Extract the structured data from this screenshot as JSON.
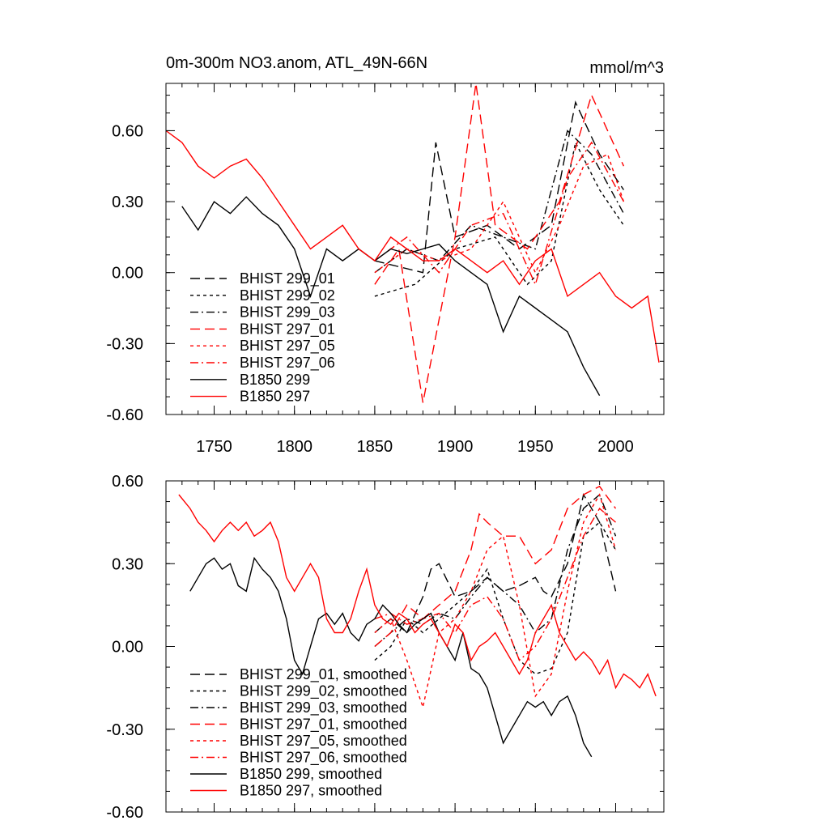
{
  "chart_data": [
    {
      "type": "line",
      "title": "0m-300m NO3.anom, ATL_49N-66N",
      "units": "mmol/m^3",
      "xlim": [
        1720,
        2030
      ],
      "ylim": [
        -0.6,
        0.8
      ],
      "yticks": [
        -0.6,
        -0.3,
        0.0,
        0.3,
        0.6
      ],
      "ytick_labels": [
        "-0.60",
        "-0.30",
        "0.00",
        "0.30",
        "0.60"
      ],
      "xticks": [
        1750,
        1800,
        1850,
        1900,
        1950,
        2000
      ],
      "xtick_labels": [
        "1750",
        "1800",
        "1850",
        "1900",
        "1950",
        "2000"
      ],
      "legend_position": "lower-left",
      "series": [
        {
          "name": "BHIST 299_01",
          "color": "#000000",
          "dash": "long-dash",
          "x": [
            1850,
            1880,
            1888,
            1900,
            1920,
            1940,
            1960,
            1975,
            1990,
            2005
          ],
          "values": [
            0.05,
            0.0,
            0.55,
            0.15,
            0.2,
            0.1,
            0.2,
            0.72,
            0.5,
            0.35
          ]
        },
        {
          "name": "BHIST 299_02",
          "color": "#000000",
          "dash": "short-dash",
          "x": [
            1850,
            1875,
            1900,
            1925,
            1945,
            1960,
            1975,
            1990,
            2005
          ],
          "values": [
            -0.1,
            -0.05,
            0.1,
            0.15,
            -0.05,
            0.05,
            0.55,
            0.35,
            0.2
          ]
        },
        {
          "name": "BHIST 299_03",
          "color": "#000000",
          "dash": "dash-dot",
          "x": [
            1850,
            1870,
            1890,
            1910,
            1930,
            1950,
            1970,
            1985,
            2005
          ],
          "values": [
            0.0,
            0.1,
            0.05,
            0.2,
            0.15,
            0.1,
            0.6,
            0.5,
            0.25
          ]
        },
        {
          "name": "BHIST 297_01",
          "color": "#ff0000",
          "dash": "long-dash",
          "x": [
            1850,
            1865,
            1880,
            1900,
            1913,
            1925,
            1945,
            1965,
            1985,
            2005
          ],
          "values": [
            -0.05,
            0.1,
            -0.55,
            0.15,
            0.8,
            0.2,
            0.1,
            0.3,
            0.75,
            0.45
          ]
        },
        {
          "name": "BHIST 297_05",
          "color": "#ff0000",
          "dash": "short-dash",
          "x": [
            1850,
            1870,
            1890,
            1910,
            1930,
            1950,
            1965,
            1980,
            1995,
            2005
          ],
          "values": [
            0.0,
            0.1,
            0.05,
            0.1,
            0.3,
            0.0,
            0.2,
            0.45,
            0.5,
            0.3
          ]
        },
        {
          "name": "BHIST 297_06",
          "color": "#ff0000",
          "dash": "dash-dot",
          "x": [
            1850,
            1870,
            1890,
            1910,
            1930,
            1950,
            1970,
            1985,
            2005
          ],
          "values": [
            0.05,
            0.15,
            0.0,
            0.2,
            0.25,
            -0.05,
            0.4,
            0.55,
            0.3
          ]
        },
        {
          "name": "B1850 299",
          "color": "#000000",
          "dash": "solid",
          "x": [
            1730,
            1740,
            1750,
            1760,
            1770,
            1780,
            1790,
            1800,
            1810,
            1820,
            1830,
            1840,
            1850,
            1860,
            1870,
            1880,
            1890,
            1900,
            1910,
            1920,
            1930,
            1940,
            1950,
            1960,
            1970,
            1980,
            1990
          ],
          "values": [
            0.28,
            0.18,
            0.3,
            0.25,
            0.32,
            0.25,
            0.2,
            0.1,
            -0.1,
            0.1,
            0.05,
            0.1,
            0.05,
            0.1,
            0.08,
            0.1,
            0.12,
            0.05,
            0.0,
            -0.05,
            -0.25,
            -0.1,
            -0.15,
            -0.2,
            -0.25,
            -0.4,
            -0.52
          ]
        },
        {
          "name": "B1850 297",
          "color": "#ff0000",
          "dash": "solid",
          "x": [
            1720,
            1730,
            1740,
            1750,
            1760,
            1770,
            1780,
            1790,
            1800,
            1810,
            1820,
            1830,
            1840,
            1850,
            1860,
            1870,
            1880,
            1890,
            1900,
            1910,
            1920,
            1930,
            1940,
            1950,
            1960,
            1970,
            1980,
            1990,
            2000,
            2010,
            2020,
            2027
          ],
          "values": [
            0.6,
            0.55,
            0.45,
            0.4,
            0.45,
            0.48,
            0.4,
            0.3,
            0.2,
            0.1,
            0.15,
            0.2,
            0.1,
            0.05,
            0.15,
            0.1,
            0.05,
            0.05,
            0.1,
            0.05,
            0.0,
            0.05,
            -0.05,
            0.05,
            0.1,
            -0.1,
            -0.05,
            0.0,
            -0.1,
            -0.15,
            -0.1,
            -0.38
          ]
        }
      ]
    },
    {
      "type": "line",
      "xlim": [
        1720,
        2030
      ],
      "ylim": [
        -0.6,
        0.6
      ],
      "yticks": [
        -0.6,
        -0.3,
        0.0,
        0.3,
        0.6
      ],
      "ytick_labels": [
        "-0.60",
        "-0.30",
        "0.00",
        "0.30",
        "0.60"
      ],
      "xticks": [
        1750,
        1800,
        1850,
        1900,
        1950,
        2000
      ],
      "xtick_labels": [],
      "legend_position": "lower-left",
      "series": [
        {
          "name": "BHIST 299_01, smoothed",
          "color": "#000000",
          "dash": "long-dash",
          "x": [
            1850,
            1860,
            1870,
            1880,
            1885,
            1890,
            1900,
            1910,
            1920,
            1930,
            1940,
            1950,
            1955,
            1960,
            1970,
            1980,
            1990,
            2000
          ],
          "values": [
            0.05,
            0.1,
            0.05,
            0.18,
            0.28,
            0.3,
            0.18,
            0.2,
            0.25,
            0.2,
            0.22,
            0.25,
            0.2,
            0.18,
            0.3,
            0.55,
            0.45,
            0.2
          ]
        },
        {
          "name": "BHIST 299_02, smoothed",
          "color": "#000000",
          "dash": "short-dash",
          "x": [
            1850,
            1860,
            1870,
            1880,
            1890,
            1900,
            1910,
            1920,
            1930,
            1940,
            1950,
            1960,
            1970,
            1980,
            1990,
            2000
          ],
          "values": [
            -0.05,
            0.0,
            0.1,
            0.05,
            0.1,
            0.15,
            0.2,
            0.28,
            0.1,
            -0.05,
            -0.1,
            -0.08,
            0.05,
            0.4,
            0.45,
            0.35
          ]
        },
        {
          "name": "BHIST 299_03, smoothed",
          "color": "#000000",
          "dash": "dash-dot",
          "x": [
            1850,
            1860,
            1870,
            1880,
            1890,
            1900,
            1910,
            1920,
            1930,
            1940,
            1950,
            1960,
            1970,
            1980,
            1990,
            2000
          ],
          "values": [
            0.0,
            0.05,
            0.1,
            0.08,
            0.12,
            0.1,
            0.18,
            0.25,
            0.2,
            0.15,
            0.05,
            0.1,
            0.35,
            0.5,
            0.55,
            0.4
          ]
        },
        {
          "name": "BHIST 297_01, smoothed",
          "color": "#ff0000",
          "dash": "long-dash",
          "x": [
            1850,
            1860,
            1870,
            1880,
            1890,
            1900,
            1910,
            1915,
            1920,
            1930,
            1940,
            1950,
            1960,
            1970,
            1980,
            1990,
            2000
          ],
          "values": [
            0.0,
            0.05,
            0.15,
            0.1,
            0.15,
            0.2,
            0.35,
            0.48,
            0.45,
            0.4,
            0.4,
            0.3,
            0.35,
            0.5,
            0.55,
            0.58,
            0.5
          ]
        },
        {
          "name": "BHIST 297_05, smoothed",
          "color": "#ff0000",
          "dash": "short-dash",
          "x": [
            1850,
            1860,
            1870,
            1880,
            1890,
            1900,
            1910,
            1920,
            1930,
            1940,
            1950,
            1960,
            1970,
            1980,
            1990,
            2000
          ],
          "values": [
            0.05,
            0.1,
            -0.05,
            -0.22,
            0.05,
            0.1,
            0.2,
            0.35,
            0.4,
            0.15,
            -0.18,
            -0.1,
            0.2,
            0.45,
            0.55,
            0.35
          ]
        },
        {
          "name": "BHIST 297_06, smoothed",
          "color": "#ff0000",
          "dash": "dash-dot",
          "x": [
            1850,
            1860,
            1870,
            1880,
            1890,
            1900,
            1910,
            1920,
            1930,
            1940,
            1950,
            1960,
            1970,
            1980,
            1990,
            2000
          ],
          "values": [
            0.1,
            0.12,
            0.08,
            0.1,
            0.12,
            0.05,
            0.15,
            0.18,
            0.1,
            -0.05,
            0.0,
            0.1,
            0.25,
            0.4,
            0.5,
            0.45
          ]
        },
        {
          "name": "B1850 299, smoothed",
          "color": "#000000",
          "dash": "solid",
          "x": [
            1735,
            1740,
            1745,
            1750,
            1755,
            1760,
            1765,
            1770,
            1775,
            1780,
            1785,
            1790,
            1795,
            1800,
            1805,
            1810,
            1815,
            1820,
            1825,
            1830,
            1835,
            1840,
            1845,
            1850,
            1855,
            1860,
            1865,
            1870,
            1875,
            1880,
            1885,
            1890,
            1895,
            1900,
            1905,
            1910,
            1915,
            1920,
            1925,
            1930,
            1935,
            1940,
            1945,
            1950,
            1955,
            1960,
            1965,
            1970,
            1975,
            1980,
            1985
          ],
          "values": [
            0.2,
            0.25,
            0.3,
            0.32,
            0.28,
            0.3,
            0.22,
            0.2,
            0.32,
            0.28,
            0.25,
            0.2,
            0.1,
            -0.05,
            -0.1,
            0.0,
            0.1,
            0.12,
            0.08,
            0.12,
            0.05,
            0.02,
            0.08,
            0.1,
            0.15,
            0.12,
            0.08,
            0.05,
            0.08,
            0.1,
            0.12,
            0.05,
            0.0,
            -0.05,
            0.05,
            -0.08,
            -0.1,
            -0.15,
            -0.25,
            -0.35,
            -0.3,
            -0.25,
            -0.2,
            -0.22,
            -0.2,
            -0.25,
            -0.2,
            -0.18,
            -0.25,
            -0.35,
            -0.4
          ]
        },
        {
          "name": "B1850 297, smoothed",
          "color": "#ff0000",
          "dash": "solid",
          "x": [
            1728,
            1735,
            1740,
            1745,
            1750,
            1755,
            1760,
            1765,
            1770,
            1775,
            1780,
            1785,
            1790,
            1795,
            1800,
            1805,
            1810,
            1815,
            1820,
            1825,
            1830,
            1835,
            1840,
            1845,
            1850,
            1855,
            1860,
            1865,
            1870,
            1875,
            1880,
            1885,
            1890,
            1895,
            1900,
            1905,
            1910,
            1915,
            1920,
            1925,
            1930,
            1935,
            1940,
            1945,
            1950,
            1955,
            1960,
            1965,
            1970,
            1975,
            1980,
            1985,
            1990,
            1995,
            2000,
            2005,
            2010,
            2015,
            2020,
            2025
          ],
          "values": [
            0.55,
            0.5,
            0.45,
            0.42,
            0.38,
            0.42,
            0.45,
            0.42,
            0.45,
            0.4,
            0.42,
            0.45,
            0.38,
            0.25,
            0.2,
            0.25,
            0.3,
            0.25,
            0.1,
            0.05,
            0.05,
            0.1,
            0.2,
            0.28,
            0.15,
            0.1,
            0.08,
            0.12,
            0.1,
            0.05,
            0.08,
            0.1,
            0.05,
            0.0,
            0.08,
            0.05,
            -0.05,
            0.0,
            0.02,
            0.05,
            0.0,
            -0.05,
            -0.1,
            -0.05,
            0.05,
            0.1,
            0.15,
            0.05,
            0.0,
            -0.05,
            -0.02,
            -0.05,
            -0.1,
            -0.05,
            -0.15,
            -0.1,
            -0.12,
            -0.15,
            -0.1,
            -0.18
          ]
        }
      ]
    }
  ]
}
